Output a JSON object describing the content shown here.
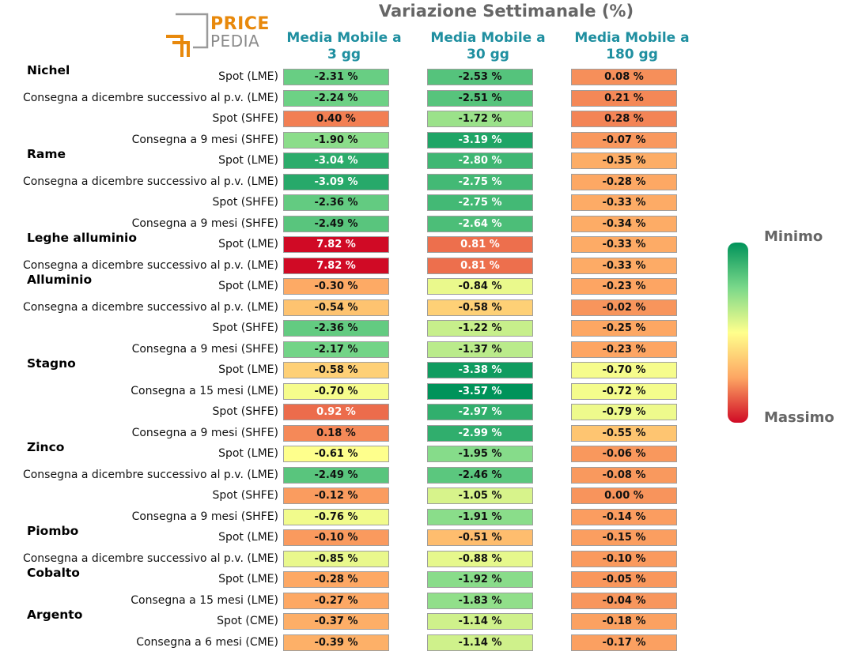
{
  "logo": {
    "line1": "PRICE",
    "line2": "PEDIA"
  },
  "chart_data": {
    "type": "table",
    "title": "Variazione Settimanale (%)",
    "columns": [
      "Media Mobile a\n3 gg",
      "Media Mobile a\n30 gg",
      "Media Mobile a\n180 gg"
    ],
    "columns_lines": [
      [
        "Media Mobile a",
        "3 gg"
      ],
      [
        "Media Mobile a",
        "30 gg"
      ],
      [
        "Media Mobile a",
        "180 gg"
      ]
    ],
    "unit": "%",
    "groups": [
      "Nichel",
      "Rame",
      "Leghe alluminio",
      "Alluminio",
      "Stagno",
      "Zinco",
      "Piombo",
      "Cobalto",
      "Argento"
    ],
    "rows": [
      {
        "group": 0,
        "label": "Spot (LME)",
        "values": [
          -2.31,
          -2.53,
          0.08
        ],
        "text": [
          "-2.31 %",
          "-2.53 %",
          "0.08 %"
        ]
      },
      {
        "group": 0,
        "label": "Consegna a dicembre successivo al p.v. (LME)",
        "values": [
          -2.24,
          -2.51,
          0.21
        ],
        "text": [
          "-2.24 %",
          "-2.51 %",
          "0.21 %"
        ]
      },
      {
        "group": 0,
        "label": "Spot (SHFE)",
        "values": [
          0.4,
          -1.72,
          0.28
        ],
        "text": [
          "0.40 %",
          "-1.72 %",
          "0.28 %"
        ]
      },
      {
        "group": 0,
        "label": "Consegna a 9 mesi (SHFE)",
        "values": [
          -1.9,
          -3.19,
          -0.07
        ],
        "text": [
          "-1.90 %",
          "-3.19 %",
          "-0.07 %"
        ]
      },
      {
        "group": 1,
        "label": "Spot (LME)",
        "values": [
          -3.04,
          -2.8,
          -0.35
        ],
        "text": [
          "-3.04 %",
          "-2.80 %",
          "-0.35 %"
        ]
      },
      {
        "group": 1,
        "label": "Consegna a dicembre successivo al p.v. (LME)",
        "values": [
          -3.09,
          -2.75,
          -0.28
        ],
        "text": [
          "-3.09 %",
          "-2.75 %",
          "-0.28 %"
        ]
      },
      {
        "group": 1,
        "label": "Spot (SHFE)",
        "values": [
          -2.36,
          -2.75,
          -0.33
        ],
        "text": [
          "-2.36 %",
          "-2.75 %",
          "-0.33 %"
        ]
      },
      {
        "group": 1,
        "label": "Consegna a 9 mesi (SHFE)",
        "values": [
          -2.49,
          -2.64,
          -0.34
        ],
        "text": [
          "-2.49 %",
          "-2.64 %",
          "-0.34 %"
        ]
      },
      {
        "group": 2,
        "label": "Spot (LME)",
        "values": [
          7.82,
          0.81,
          -0.33
        ],
        "text": [
          "7.82 %",
          "0.81 %",
          "-0.33 %"
        ]
      },
      {
        "group": 2,
        "label": "Consegna a dicembre successivo al p.v. (LME)",
        "values": [
          7.82,
          0.81,
          -0.33
        ],
        "text": [
          "7.82 %",
          "0.81 %",
          "-0.33 %"
        ]
      },
      {
        "group": 3,
        "label": "Spot (LME)",
        "values": [
          -0.3,
          -0.84,
          -0.23
        ],
        "text": [
          "-0.30 %",
          "-0.84 %",
          "-0.23 %"
        ]
      },
      {
        "group": 3,
        "label": "Consegna a dicembre successivo al p.v. (LME)",
        "values": [
          -0.54,
          -0.58,
          -0.02
        ],
        "text": [
          "-0.54 %",
          "-0.58 %",
          "-0.02 %"
        ]
      },
      {
        "group": 3,
        "label": "Spot (SHFE)",
        "values": [
          -2.36,
          -1.22,
          -0.25
        ],
        "text": [
          "-2.36 %",
          "-1.22 %",
          "-0.25 %"
        ]
      },
      {
        "group": 3,
        "label": "Consegna a 9 mesi (SHFE)",
        "values": [
          -2.17,
          -1.37,
          -0.23
        ],
        "text": [
          "-2.17 %",
          "-1.37 %",
          "-0.23 %"
        ]
      },
      {
        "group": 4,
        "label": "Spot (LME)",
        "values": [
          -0.58,
          -3.38,
          -0.7
        ],
        "text": [
          "-0.58 %",
          "-3.38 %",
          "-0.70 %"
        ]
      },
      {
        "group": 4,
        "label": "Consegna a 15 mesi (LME)",
        "values": [
          -0.7,
          -3.57,
          -0.72
        ],
        "text": [
          "-0.70 %",
          "-3.57 %",
          "-0.72 %"
        ]
      },
      {
        "group": 4,
        "label": "Spot (SHFE)",
        "values": [
          0.92,
          -2.97,
          -0.79
        ],
        "text": [
          "0.92 %",
          "-2.97 %",
          "-0.79 %"
        ]
      },
      {
        "group": 4,
        "label": "Consegna a 9 mesi (SHFE)",
        "values": [
          0.18,
          -2.99,
          -0.55
        ],
        "text": [
          "0.18 %",
          "-2.99 %",
          "-0.55 %"
        ]
      },
      {
        "group": 5,
        "label": "Spot (LME)",
        "values": [
          -0.61,
          -1.95,
          -0.06
        ],
        "text": [
          "-0.61 %",
          "-1.95 %",
          "-0.06 %"
        ]
      },
      {
        "group": 5,
        "label": "Consegna a dicembre successivo al p.v. (LME)",
        "values": [
          -2.49,
          -2.46,
          -0.08
        ],
        "text": [
          "-2.49 %",
          "-2.46 %",
          "-0.08 %"
        ]
      },
      {
        "group": 5,
        "label": "Spot (SHFE)",
        "values": [
          -0.12,
          -1.05,
          0.0
        ],
        "text": [
          "-0.12 %",
          "-1.05 %",
          "0.00 %"
        ]
      },
      {
        "group": 5,
        "label": "Consegna a 9 mesi (SHFE)",
        "values": [
          -0.76,
          -1.91,
          -0.14
        ],
        "text": [
          "-0.76 %",
          "-1.91 %",
          "-0.14 %"
        ]
      },
      {
        "group": 6,
        "label": "Spot (LME)",
        "values": [
          -0.1,
          -0.51,
          -0.15
        ],
        "text": [
          "-0.10 %",
          "-0.51 %",
          "-0.15 %"
        ]
      },
      {
        "group": 6,
        "label": "Consegna a dicembre successivo al p.v. (LME)",
        "values": [
          -0.85,
          -0.88,
          -0.1
        ],
        "text": [
          "-0.85 %",
          "-0.88 %",
          "-0.10 %"
        ]
      },
      {
        "group": 7,
        "label": "Spot (LME)",
        "values": [
          -0.28,
          -1.92,
          -0.05
        ],
        "text": [
          "-0.28 %",
          "-1.92 %",
          "-0.05 %"
        ]
      },
      {
        "group": 7,
        "label": "Consegna a 15 mesi (LME)",
        "values": [
          -0.27,
          -1.83,
          -0.04
        ],
        "text": [
          "-0.27 %",
          "-1.83 %",
          "-0.04 %"
        ]
      },
      {
        "group": 8,
        "label": "Spot (CME)",
        "values": [
          -0.37,
          -1.14,
          -0.18
        ],
        "text": [
          "-0.37 %",
          "-1.14 %",
          "-0.18 %"
        ]
      },
      {
        "group": 8,
        "label": "Consegna a 6 mesi (CME)",
        "values": [
          -0.39,
          -1.14,
          -0.17
        ],
        "text": [
          "-0.39 %",
          "-1.14 %",
          "-0.17 %"
        ]
      }
    ],
    "colorscale": [
      "#00935a",
      "#7ad88a",
      "#ffff8c",
      "#fda663",
      "#d00a25"
    ],
    "legend": {
      "top": "Minimo",
      "bottom": "Massimo",
      "placement": "right"
    }
  }
}
